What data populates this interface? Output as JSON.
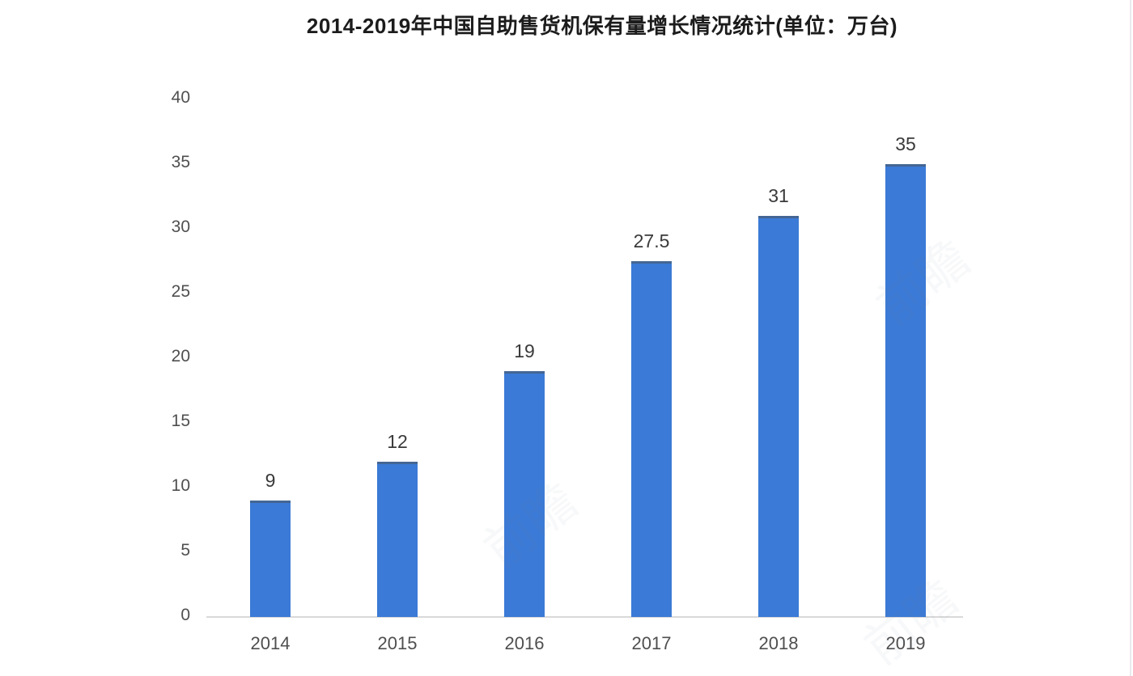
{
  "page": {
    "background": "#ffffff",
    "watermark_text": "前瞻"
  },
  "chart_data": {
    "type": "bar",
    "title": "2014-2019年中国自助售货机保有量增长情况统计(单位：万台)",
    "categories": [
      "2014",
      "2015",
      "2016",
      "2017",
      "2018",
      "2019"
    ],
    "values": [
      9,
      12,
      19,
      27.5,
      31,
      35
    ],
    "value_labels": [
      "9",
      "12",
      "19",
      "27.5",
      "31",
      "35"
    ],
    "series_name": "中国自助售货机保有量",
    "unit": "万台",
    "xlabel": "",
    "ylabel": "",
    "ylim": [
      0,
      40
    ],
    "yticks": [
      0,
      5,
      10,
      15,
      20,
      25,
      30,
      35,
      40
    ],
    "grid": false,
    "legend_position": "none",
    "colors": {
      "bar": "#3b7ad6",
      "bar_top_edge": "#4a5c70",
      "axis_line": "#d9d9d9",
      "tick_label": "#4f4f4f",
      "value_label": "#3a3a3a",
      "title": "#1c1c1c"
    }
  }
}
